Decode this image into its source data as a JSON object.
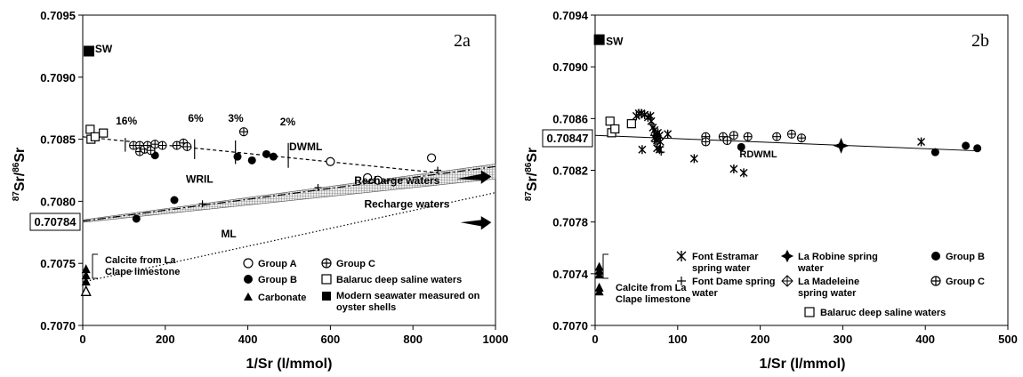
{
  "chart_data": [
    {
      "type": "scatter",
      "panel": "2a",
      "xlabel": "1/Sr (l/mmol)",
      "ylabel_sup1": "87",
      "ylabel_mid": "Sr/",
      "ylabel_sup2": "86",
      "ylabel_end": "Sr",
      "xlim": [
        0,
        1000
      ],
      "ylim": [
        0.707,
        0.7095
      ],
      "xticks": [
        "0",
        "200",
        "400",
        "600",
        "800",
        "1000"
      ],
      "yticks": [
        "0.7070",
        "0.7075",
        "0.7080",
        "0.7085",
        "0.7090",
        "0.7095"
      ],
      "boxed_y_label": "0.70784",
      "series": [
        {
          "name": "Group A",
          "marker": "circle-open",
          "points": [
            [
              600,
              0.70832
            ],
            [
              690,
              0.70819
            ],
            [
              715,
              0.70817
            ],
            [
              845,
              0.70835
            ]
          ]
        },
        {
          "name": "Group B",
          "marker": "circle-filled",
          "points": [
            [
              130,
              0.70786
            ],
            [
              175,
              0.70837
            ],
            [
              222,
              0.70801
            ],
            [
              375,
              0.70836
            ],
            [
              410,
              0.70833
            ],
            [
              445,
              0.70838
            ],
            [
              462,
              0.70836
            ]
          ]
        },
        {
          "name": "Group C",
          "marker": "circle-cross",
          "points": [
            [
              123,
              0.70845
            ],
            [
              138,
              0.70845
            ],
            [
              138,
              0.7084
            ],
            [
              150,
              0.70842
            ],
            [
              157,
              0.70845
            ],
            [
              165,
              0.70841
            ],
            [
              175,
              0.70846
            ],
            [
              193,
              0.70845
            ],
            [
              228,
              0.70845
            ],
            [
              244,
              0.70847
            ],
            [
              253,
              0.70844
            ],
            [
              390,
              0.70856
            ]
          ]
        },
        {
          "name": "Balaruc deep saline waters",
          "marker": "square-open",
          "points": [
            [
              18,
              0.70858
            ],
            [
              20,
              0.7085
            ],
            [
              30,
              0.70852
            ],
            [
              50,
              0.70855
            ]
          ]
        },
        {
          "name": "Carbonate",
          "marker": "triangle-filled",
          "points": [
            [
              8,
              0.70745
            ],
            [
              8,
              0.7074
            ],
            [
              8,
              0.70735
            ],
            [
              8,
              0.70728
            ]
          ]
        },
        {
          "name": "Modern seawater measured on oyster shells",
          "marker": "square-filled",
          "points": [
            [
              15,
              0.70921
            ]
          ]
        },
        {
          "name": "",
          "marker": "plus",
          "points": [
            [
              290,
              0.70798
            ],
            [
              570,
              0.70811
            ],
            [
              860,
              0.70825
            ]
          ]
        }
      ],
      "calcite_point": [
        8,
        0.70727
      ],
      "lines": [
        {
          "label": "DWML",
          "style": "dashed",
          "from": [
            0,
            0.70852
          ],
          "to": [
            860,
            0.70823
          ]
        },
        {
          "label": "WRIL",
          "style": "dashdot",
          "from": [
            0,
            0.70784
          ],
          "to": [
            1000,
            0.70828
          ]
        },
        {
          "label": "ML",
          "style": "dotted",
          "from": [
            0,
            0.70735
          ],
          "to": [
            1000,
            0.70807
          ]
        }
      ],
      "band": {
        "from_top": [
          0,
          0.70785
        ],
        "to_top": [
          1000,
          0.7083
        ],
        "from_bot": [
          0,
          0.70783
        ],
        "to_bot": [
          1000,
          0.70818
        ]
      },
      "percent_markers": [
        {
          "label": "16%",
          "x": 103,
          "y0": 0.7084,
          "y1": 0.70851
        },
        {
          "label": "6%",
          "x": 271,
          "y0": 0.70834,
          "y1": 0.7085
        },
        {
          "label": "3%",
          "x": 370,
          "y0": 0.7083,
          "y1": 0.70849
        },
        {
          "label": "2%",
          "x": 498,
          "y0": 0.70827,
          "y1": 0.70847
        }
      ],
      "annotations": [
        {
          "id": "sw",
          "text": "SW",
          "x": 30,
          "y": 0.7092
        },
        {
          "id": "p16",
          "text": "16%",
          "x": 80,
          "y": 0.70862
        },
        {
          "id": "p6",
          "text": "6%",
          "x": 255,
          "y": 0.70864
        },
        {
          "id": "p3",
          "text": "3%",
          "x": 352,
          "y": 0.70864
        },
        {
          "id": "p2",
          "text": "2%",
          "x": 478,
          "y": 0.70861
        },
        {
          "id": "dwml",
          "text": "DWML",
          "x": 500,
          "y": 0.70841
        },
        {
          "id": "wril",
          "text": "WRIL",
          "x": 250,
          "y": 0.70815
        },
        {
          "id": "rw1",
          "text": "Recharge waters",
          "x": 658,
          "y": 0.70814
        },
        {
          "id": "ml",
          "text": "ML",
          "x": 335,
          "y": 0.70771
        },
        {
          "id": "rw2",
          "text": "Recharge waters",
          "x": 682,
          "y": 0.70795
        }
      ],
      "calcite_label_1": "Calcite from La",
      "calcite_label_2": "Clape limestone",
      "legend": {
        "group_a": "Group A",
        "group_c": "Group C",
        "group_b": "Group B",
        "balaruc": "Balaruc deep saline waters",
        "carbonate": "Carbonate",
        "modern_1": "Modern seawater measured on",
        "modern_2": "oyster shells"
      }
    },
    {
      "type": "scatter",
      "panel": "2b",
      "xlabel": "1/Sr (l/mmol)",
      "ylabel_sup1": "87",
      "ylabel_mid": "Sr/",
      "ylabel_sup2": "86",
      "ylabel_end": "Sr",
      "xlim": [
        0,
        500
      ],
      "ylim": [
        0.707,
        0.7094
      ],
      "xticks": [
        "0",
        "100",
        "200",
        "300",
        "400",
        "500"
      ],
      "yticks": [
        "0.7070",
        "0.7074",
        "0.7078",
        "0.7082",
        "0.7086",
        "0.7090",
        "0.7094"
      ],
      "boxed_y_label": "0.70847",
      "line": {
        "label": "RDWML",
        "from": [
          0,
          0.70847
        ],
        "to": [
          465,
          0.70835
        ]
      },
      "series": [
        {
          "name": "Font Estramar spring water",
          "marker": "asterisk",
          "points": [
            [
              50,
              0.70862
            ],
            [
              53,
              0.70864
            ],
            [
              56,
              0.70864
            ],
            [
              60,
              0.70863
            ],
            [
              64,
              0.70861
            ],
            [
              67,
              0.70862
            ],
            [
              68,
              0.70858
            ],
            [
              70,
              0.70853
            ],
            [
              72,
              0.70851
            ],
            [
              74,
              0.70848
            ],
            [
              76,
              0.70849
            ],
            [
              78,
              0.70847
            ],
            [
              72,
              0.70845
            ],
            [
              75,
              0.70843
            ],
            [
              79,
              0.70842
            ],
            [
              88,
              0.70848
            ],
            [
              57,
              0.70836
            ],
            [
              75,
              0.70837
            ],
            [
              78,
              0.70836
            ],
            [
              120,
              0.70829
            ],
            [
              168,
              0.70821
            ],
            [
              180,
              0.70818
            ],
            [
              395,
              0.70842
            ]
          ]
        },
        {
          "name": "Font Dame spring water",
          "marker": "plus",
          "points": [
            [
              71,
              0.70847
            ],
            [
              73,
              0.70842
            ],
            [
              79,
              0.70838
            ],
            [
              80,
              0.70834
            ]
          ]
        },
        {
          "name": "La Robine spring water",
          "marker": "star4-filled",
          "points": [
            [
              298,
              0.70839
            ]
          ]
        },
        {
          "name": "Group B",
          "marker": "circle-filled",
          "points": [
            [
              177,
              0.70838
            ],
            [
              412,
              0.70834
            ],
            [
              449,
              0.70839
            ],
            [
              463,
              0.70837
            ]
          ]
        },
        {
          "name": "La Madeleine spring water",
          "marker": "diamond-cross",
          "points": []
        },
        {
          "name": "Group C",
          "marker": "circle-cross",
          "points": [
            [
              134,
              0.70846
            ],
            [
              134,
              0.70842
            ],
            [
              155,
              0.70846
            ],
            [
              160,
              0.70843
            ],
            [
              168,
              0.70847
            ],
            [
              185,
              0.70846
            ],
            [
              220,
              0.70846
            ],
            [
              238,
              0.70848
            ],
            [
              250,
              0.70845
            ]
          ]
        },
        {
          "name": "Balaruc deep saline waters",
          "marker": "square-open",
          "points": [
            [
              18,
              0.70858
            ],
            [
              20,
              0.70849
            ],
            [
              24,
              0.70852
            ],
            [
              44,
              0.70856
            ]
          ]
        },
        {
          "name": "SW",
          "marker": "square-filled",
          "points": [
            [
              5,
              0.70921
            ]
          ]
        },
        {
          "name": "Calcite",
          "marker": "triangle-filled",
          "points": [
            [
              5,
              0.70745
            ],
            [
              5,
              0.70742
            ],
            [
              5,
              0.70739
            ],
            [
              5,
              0.70729
            ],
            [
              5,
              0.70726
            ]
          ]
        }
      ],
      "annotations": [
        {
          "id": "sw",
          "text": "SW",
          "x": 13,
          "y": 0.70917
        },
        {
          "id": "rdwml",
          "text": "RDWML",
          "x": 175,
          "y": 0.7083
        }
      ],
      "calcite_label_1": "Calcite from La",
      "calcite_label_2": "Clape limestone",
      "legend": {
        "estramar_1": "Font  Estramar",
        "estramar_2": "spring water",
        "dame_1": "Font  Dame spring",
        "dame_2": "water",
        "robine_1": "La Robine spring",
        "robine_2": "water",
        "group_b": "Group B",
        "madeleine_1": "La Madeleine",
        "madeleine_2": "spring water",
        "group_c": "Group C",
        "balaruc": "Balaruc deep saline waters"
      }
    }
  ]
}
